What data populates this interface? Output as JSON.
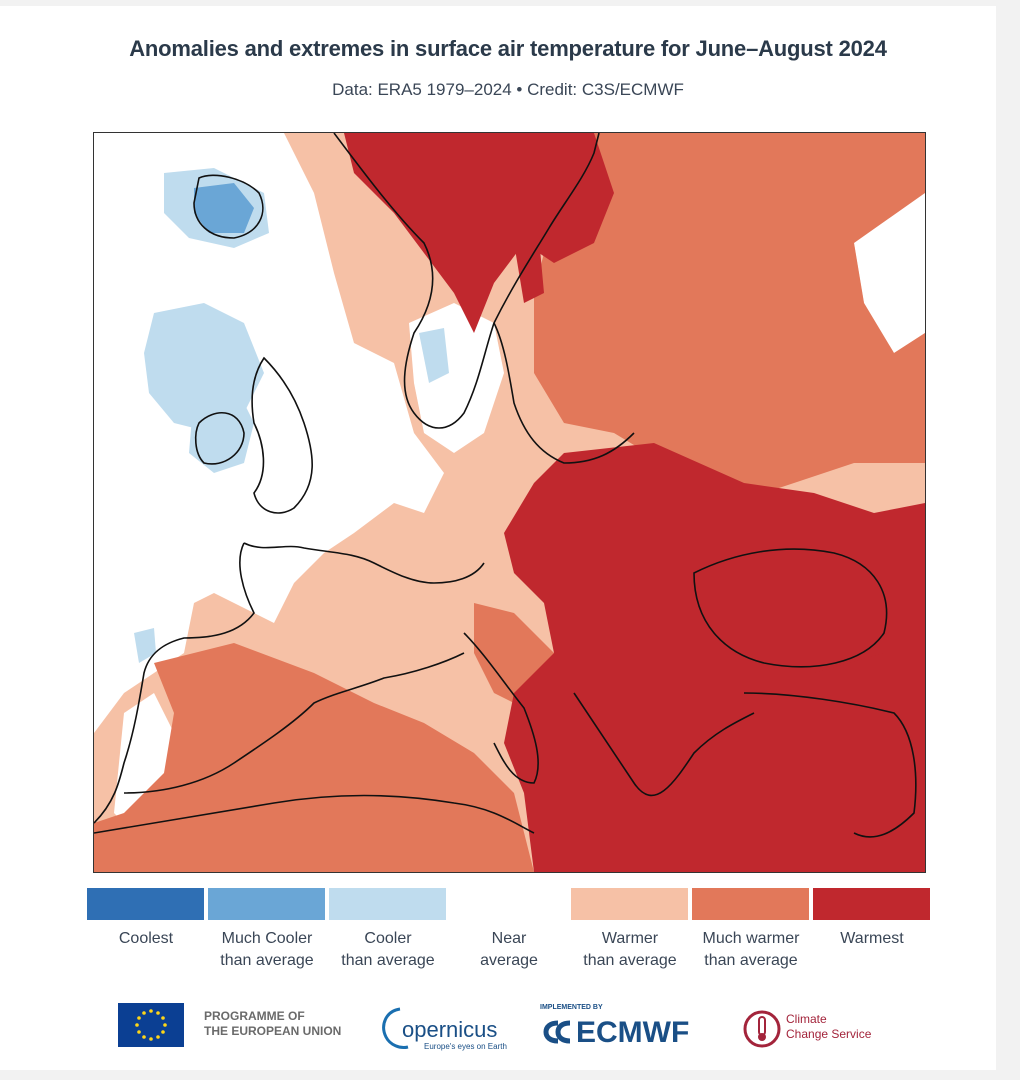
{
  "title": "Anomalies and extremes in surface air temperature for June–August 2024",
  "subtitle": "Data: ERA5 1979–2024 • Credit: C3S/ECMWF",
  "legend": [
    {
      "label_line1": "Coolest",
      "label_line2": "",
      "color": "#2f6fb4"
    },
    {
      "label_line1": "Much Cooler",
      "label_line2": "than average",
      "color": "#6aa6d6"
    },
    {
      "label_line1": "Cooler",
      "label_line2": "than average",
      "color": "#bfdcee"
    },
    {
      "label_line1": "Near",
      "label_line2": "average",
      "color": "#ffffff"
    },
    {
      "label_line1": "Warmer",
      "label_line2": "than average",
      "color": "#f6c1a6"
    },
    {
      "label_line1": "Much warmer",
      "label_line2": "than average",
      "color": "#e2785a"
    },
    {
      "label_line1": "Warmest",
      "label_line2": "",
      "color": "#c0282e"
    }
  ],
  "logos": {
    "programme": "PROGRAMME OF",
    "programme2": "THE EUROPEAN UNION",
    "copernicus": "opernicus",
    "copernicus_tagline": "Europe's eyes on Earth",
    "implemented_by": "IMPLEMENTED BY",
    "ecmwf": "ECMWF",
    "c3s_line1": "Climate",
    "c3s_line2": "Change Service"
  },
  "colors": {
    "near": "#ffffff",
    "cooler": "#bfdcee",
    "much_cooler": "#6aa6d6",
    "warmer": "#f6c1a6",
    "much_warmer": "#e2785a",
    "warmest": "#c0282e",
    "coast": "#111111"
  }
}
